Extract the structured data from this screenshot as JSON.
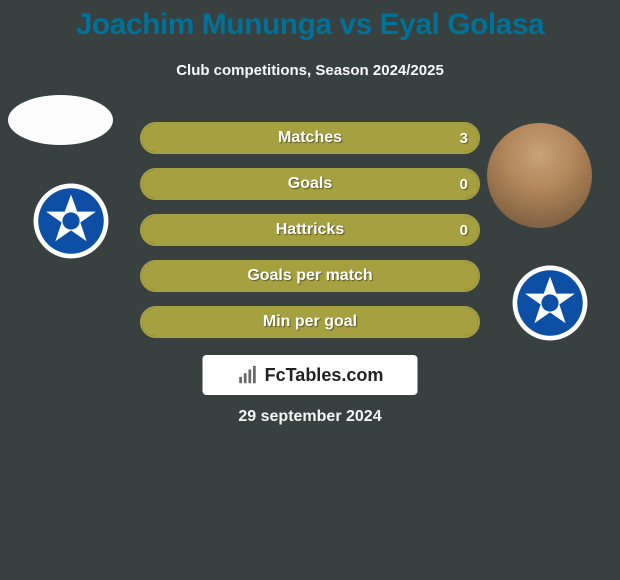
{
  "background_color": "#384040",
  "title": {
    "text": "Joachim Mununga vs Eyal Golasa",
    "color": "#007197",
    "fontsize": 30,
    "fontweight": 800
  },
  "subtitle": {
    "text": "Club competitions, Season 2024/2025",
    "color": "#f7fbf8",
    "fontsize": 15
  },
  "players": {
    "left": {
      "name": "Joachim Mununga",
      "avatar_bg": "#fdfdfd",
      "club_badge": {
        "ring_color": "#ffffff",
        "primary": "#0d4fa4",
        "accent": "#ffffff"
      }
    },
    "right": {
      "name": "Eyal Golasa",
      "avatar_bg": "#c6cbce",
      "club_badge": {
        "ring_color": "#ffffff",
        "primary": "#0d4fa4",
        "accent": "#ffffff"
      }
    }
  },
  "bars": {
    "border_color": "#a7a040",
    "track_color": "#384040",
    "fill_color": "#a7a040",
    "label_color": "#ffffff",
    "value_color": "#ffffff",
    "height": 32,
    "radius": 16,
    "gap": 14,
    "rows": [
      {
        "label": "Matches",
        "left": "",
        "right": "3",
        "left_pct": 0,
        "right_pct": 100
      },
      {
        "label": "Goals",
        "left": "",
        "right": "0",
        "left_pct": 0,
        "right_pct": 100
      },
      {
        "label": "Hattricks",
        "left": "",
        "right": "0",
        "left_pct": 0,
        "right_pct": 100
      },
      {
        "label": "Goals per match",
        "left": "",
        "right": "",
        "left_pct": 50,
        "right_pct": 50
      },
      {
        "label": "Min per goal",
        "left": "",
        "right": "",
        "left_pct": 50,
        "right_pct": 50
      }
    ]
  },
  "branding": {
    "bg": "#ffffff",
    "text": "FcTables.com",
    "text_color": "#222222",
    "icon_color": "#6a6a6a",
    "fontsize": 18
  },
  "date": {
    "text": "29 september 2024",
    "color": "#f4f7f4",
    "fontsize": 16
  }
}
